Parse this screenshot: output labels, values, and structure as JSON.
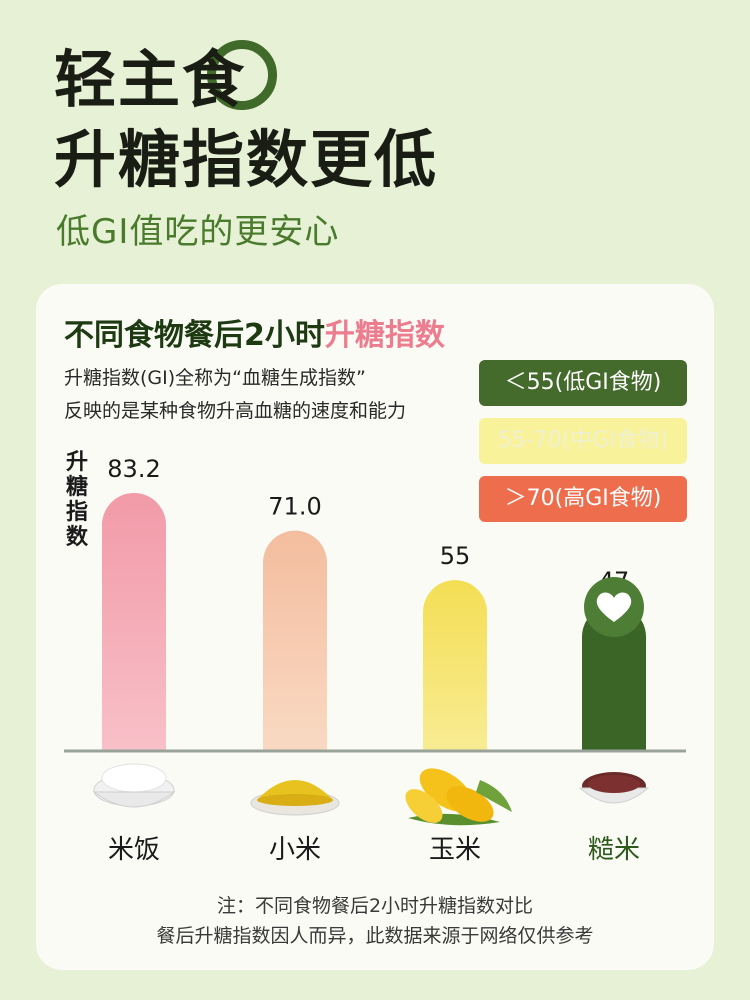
{
  "header": {
    "title_line1": "轻主食",
    "title_line2": "升糖指数更低",
    "subtitle": "低GI值吃的更安心"
  },
  "card": {
    "title_main": "不同食物餐后2小时",
    "title_highlight": "升糖指数",
    "desc_line1": "升糖指数(GI)全称为“血糖生成指数”",
    "desc_line2": "反映的是某种食物升高血糖的速度和能力",
    "legend": {
      "low": "＜55(低GI食物)",
      "mid": "55-70(中GI食物)",
      "high": "＞70(高GI食物)"
    },
    "note_line1": "注：不同食物餐后2小时升糖指数对比",
    "note_line2": "餐后升糖指数因人而异，此数据来源于网络仅供参考"
  },
  "chart_data": {
    "type": "bar",
    "ylabel": "升糖指数",
    "categories": [
      "米饭",
      "小米",
      "玉米",
      "糙米"
    ],
    "values": [
      83.2,
      71.0,
      55,
      47
    ],
    "value_labels": [
      "83.2",
      "71.0",
      "55",
      "47"
    ],
    "ylim": [
      0,
      90
    ],
    "grid": false,
    "legend_position": "top-right",
    "colors": {
      "high": "#f3a0ae",
      "mid_high": "#f7c6a8",
      "mid": "#f6e35e",
      "low": "#3f6a2a",
      "axis": "#9aa39a"
    },
    "highlight_icon": "heart-icon"
  }
}
